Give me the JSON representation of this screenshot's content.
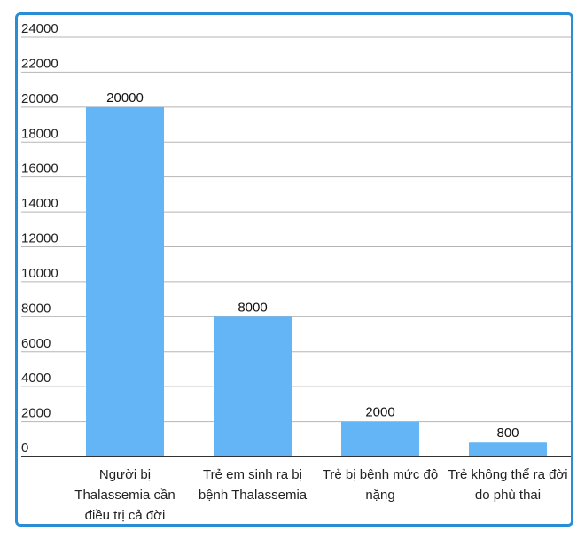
{
  "chart_data": {
    "type": "bar",
    "categories": [
      [
        "Người bị",
        "Thalassemia cần",
        "điều trị cả đời"
      ],
      [
        "Trẻ em sinh ra bị",
        "bệnh Thalassemia"
      ],
      [
        "Trẻ bị bệnh mức độ",
        "nặng"
      ],
      [
        "Trẻ không thể ra đời",
        "do phù thai"
      ]
    ],
    "values": [
      20000,
      8000,
      2000,
      800
    ],
    "data_labels": [
      "20000",
      "8000",
      "2000",
      "800"
    ],
    "y_ticks": [
      "0",
      "2000",
      "4000",
      "6000",
      "8000",
      "10000",
      "12000",
      "14000",
      "16000",
      "18000",
      "20000",
      "22000",
      "24000"
    ],
    "ylim": [
      0,
      24000
    ],
    "grid": true,
    "bar_color": "#64b5f6",
    "frame_color": "#2a8ed6"
  }
}
